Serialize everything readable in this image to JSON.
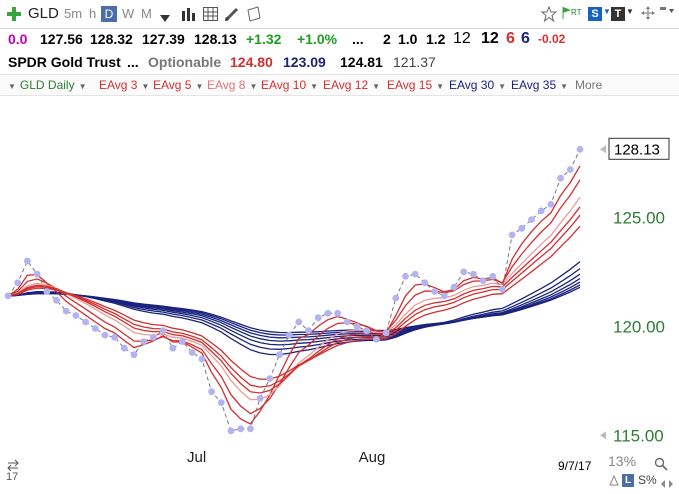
{
  "toolbar": {
    "symbol": "GLD",
    "intervals": [
      "5m",
      "h",
      "D",
      "W",
      "M"
    ],
    "active_interval": "D",
    "rt_label": "RT",
    "s_badge": "S",
    "t_badge": "T"
  },
  "quote": {
    "v1": "0.0",
    "open": "127.56",
    "high": "128.32",
    "low": "127.39",
    "last": "128.13",
    "change": "+1.32",
    "change_pct": "+1.0%",
    "dots": "...",
    "n1": "2",
    "n2": "1.0",
    "n3": "1.2",
    "n4": "12",
    "n5": "12",
    "n6": "6",
    "n7": "6",
    "n8": "-0.02"
  },
  "info": {
    "name": "SPDR Gold Trust",
    "dots": "...",
    "optionable": "Optionable",
    "p1": "124.80",
    "p2": "123.09",
    "p3": "124.81",
    "p4": "121.37"
  },
  "studies": [
    {
      "label": "GLD Daily",
      "color": "#2e7d32"
    },
    {
      "label": "EAvg 3",
      "color": "#d32f2f"
    },
    {
      "label": "EAvg 5",
      "color": "#d32f2f"
    },
    {
      "label": "EAvg 8",
      "color": "#e57373"
    },
    {
      "label": "EAvg 10",
      "color": "#d32f2f"
    },
    {
      "label": "EAvg 12",
      "color": "#d32f2f"
    },
    {
      "label": "EAvg 15",
      "color": "#d32f2f"
    },
    {
      "label": "EAvg 30",
      "color": "#1a237e"
    },
    {
      "label": "EAvg 35",
      "color": "#1a237e"
    },
    {
      "label": "More",
      "color": "#777777"
    }
  ],
  "footer": {
    "date_label": "9/7/17",
    "zoom": "13%",
    "left_number": "17",
    "l_btn": "L",
    "s_pct": "S%"
  },
  "colors": {
    "price_label": "#2e7d32",
    "red_avg": "#d32f2f",
    "light_red_avg": "#ef9a9a",
    "blue_avg": "#1a237e",
    "dots": "#b3b3f0"
  },
  "chart_data": {
    "type": "line",
    "x_labels": [
      "Jul",
      "Aug"
    ],
    "y_ticks": [
      "125.00",
      "120.00",
      "115.00"
    ],
    "y_range": [
      114.6,
      130.3
    ],
    "last_price_label": "128.13",
    "series": [
      {
        "name": "GLD Daily",
        "values": [
          121.4,
          122.0,
          123.0,
          122.4,
          121.6,
          121.2,
          120.7,
          120.5,
          120.2,
          119.9,
          119.6,
          119.5,
          119.0,
          118.7,
          119.3,
          119.5,
          119.8,
          119.0,
          119.3,
          118.8,
          118.5,
          117.0,
          116.5,
          115.2,
          115.3,
          115.3,
          116.7,
          117.6,
          118.7,
          119.6,
          120.2,
          119.8,
          120.4,
          120.6,
          120.6,
          120.2,
          120.0,
          119.8,
          119.4,
          119.7,
          121.3,
          122.3,
          122.4,
          122.0,
          121.6,
          121.4,
          121.8,
          122.5,
          122.4,
          122.1,
          122.3,
          121.7,
          124.2,
          124.5,
          124.9,
          125.3,
          125.6,
          126.8,
          127.2,
          128.13
        ]
      },
      {
        "name": "EAvg 3"
      },
      {
        "name": "EAvg 5"
      },
      {
        "name": "EAvg 8"
      },
      {
        "name": "EAvg 10"
      },
      {
        "name": "EAvg 12"
      },
      {
        "name": "EAvg 15"
      },
      {
        "name": "EAvg 30"
      },
      {
        "name": "EAvg 35"
      }
    ]
  }
}
